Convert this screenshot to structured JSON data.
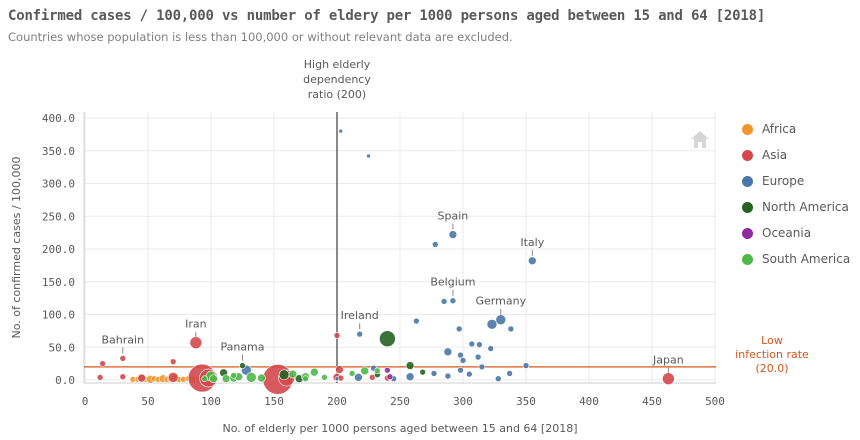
{
  "title": "Confirmed cases / 100,000 vs number of eldery per 1000 persons aged between 15 and 64 [2018]",
  "subtitle": "Countries whose population is less than 100,000 or without relevant data are excluded.",
  "chart_data": {
    "type": "scatter",
    "xlabel": "No. of elderly per 1000 persons aged between 15 and 64 [2018]",
    "ylabel": "No. of confirmed cases / 100,000",
    "xlim": [
      0,
      500
    ],
    "ylim": [
      0,
      400
    ],
    "x_ticks": [
      "0",
      "50",
      "100",
      "150",
      "200",
      "250",
      "300",
      "350",
      "400",
      "450",
      "500"
    ],
    "y_ticks": [
      "0.0",
      "50.0",
      "100.0",
      "150.0",
      "200.0",
      "250.0",
      "300.0",
      "350.0",
      "400.0"
    ],
    "grid": true,
    "legend_position": "right",
    "reference_lines": [
      {
        "orientation": "vertical",
        "value": 200,
        "label": "High elderly dependency ratio (200)",
        "color": "#595959"
      },
      {
        "orientation": "horizontal",
        "value": 20,
        "label": "Low infection rate (20.0)",
        "color": "#d0581e"
      }
    ],
    "series": [
      {
        "name": "Africa",
        "color": "#f0962e",
        "points": [
          [
            38,
            1,
            3
          ],
          [
            42,
            1,
            3
          ],
          [
            45,
            2,
            4
          ],
          [
            48,
            1,
            3
          ],
          [
            52,
            1,
            4
          ],
          [
            55,
            2,
            3
          ],
          [
            58,
            1,
            3
          ],
          [
            62,
            2,
            4
          ],
          [
            65,
            1,
            3
          ],
          [
            68,
            1,
            3
          ],
          [
            72,
            2,
            4
          ],
          [
            75,
            1,
            3
          ],
          [
            78,
            1,
            3
          ],
          [
            82,
            2,
            3
          ],
          [
            85,
            1,
            4
          ],
          [
            90,
            1,
            3
          ]
        ]
      },
      {
        "name": "Asia",
        "color": "#d3484d",
        "points": [
          [
            12,
            4,
            3
          ],
          [
            14,
            25,
            3
          ],
          [
            30,
            33,
            3
          ],
          [
            30,
            5,
            3
          ],
          [
            45,
            3,
            4
          ],
          [
            70,
            28,
            3
          ],
          [
            70,
            4,
            5
          ],
          [
            88,
            57,
            6
          ],
          [
            93,
            3,
            14
          ],
          [
            98,
            3,
            9
          ],
          [
            153,
            1,
            15
          ],
          [
            160,
            3,
            8
          ],
          [
            200,
            68,
            3
          ],
          [
            200,
            4,
            4
          ],
          [
            202,
            16,
            4
          ],
          [
            203,
            3,
            3
          ],
          [
            228,
            4,
            3
          ],
          [
            240,
            3,
            3
          ],
          [
            463,
            2,
            6
          ]
        ]
      },
      {
        "name": "Europe",
        "color": "#4a77a8",
        "points": [
          [
            203,
            380,
            2
          ],
          [
            225,
            342,
            2
          ],
          [
            278,
            207,
            3
          ],
          [
            292,
            222,
            4
          ],
          [
            355,
            182,
            4
          ],
          [
            277,
            10,
            3
          ],
          [
            285,
            120,
            3
          ],
          [
            292,
            121,
            3
          ],
          [
            297,
            78,
            3
          ],
          [
            263,
            90,
            3
          ],
          [
            315,
            20,
            3
          ],
          [
            323,
            85,
            5
          ],
          [
            330,
            92,
            5
          ],
          [
            338,
            78,
            3
          ],
          [
            322,
            48,
            3
          ],
          [
            307,
            55,
            3
          ],
          [
            313,
            54,
            3
          ],
          [
            288,
            43,
            4
          ],
          [
            298,
            38,
            3
          ],
          [
            300,
            30,
            3
          ],
          [
            312,
            35,
            3
          ],
          [
            328,
            2,
            3
          ],
          [
            337,
            10,
            3
          ],
          [
            350,
            22,
            3
          ],
          [
            128,
            15,
            5
          ],
          [
            218,
            70,
            3
          ],
          [
            217,
            4,
            4
          ],
          [
            229,
            18,
            3
          ],
          [
            258,
            5,
            4
          ],
          [
            288,
            6,
            3
          ],
          [
            298,
            15,
            3
          ],
          [
            305,
            9,
            3
          ],
          [
            245,
            2,
            3
          ],
          [
            200,
            2,
            2
          ]
        ]
      },
      {
        "name": "North America",
        "color": "#256325",
        "points": [
          [
            240,
            63,
            8
          ],
          [
            125,
            22,
            3
          ],
          [
            158,
            8,
            5
          ],
          [
            232,
            8,
            3
          ],
          [
            258,
            22,
            4
          ],
          [
            268,
            12,
            3
          ],
          [
            170,
            2,
            4
          ],
          [
            110,
            11,
            4
          ]
        ]
      },
      {
        "name": "Oceania",
        "color": "#8e2e9e",
        "points": [
          [
            240,
            15,
            3
          ],
          [
            242,
            5,
            3
          ]
        ]
      },
      {
        "name": "South America",
        "color": "#4fb848",
        "points": [
          [
            100,
            6,
            5
          ],
          [
            112,
            2,
            4
          ],
          [
            118,
            3,
            4
          ],
          [
            122,
            5,
            4
          ],
          [
            132,
            4,
            5
          ],
          [
            140,
            3,
            4
          ],
          [
            165,
            9,
            4
          ],
          [
            175,
            5,
            4
          ],
          [
            182,
            12,
            4
          ],
          [
            190,
            4,
            3
          ],
          [
            175,
            2,
            3
          ],
          [
            118,
            7,
            3
          ],
          [
            102,
            2,
            4
          ],
          [
            95,
            2,
            3
          ],
          [
            212,
            10,
            3
          ],
          [
            222,
            14,
            4
          ],
          [
            232,
            14,
            3
          ]
        ]
      }
    ],
    "annotations": [
      {
        "label": "Spain",
        "x": 292,
        "y": 222
      },
      {
        "label": "Italy",
        "x": 355,
        "y": 182
      },
      {
        "label": "Belgium",
        "x": 292,
        "y": 121
      },
      {
        "label": "Germany",
        "x": 330,
        "y": 92
      },
      {
        "label": "Ireland",
        "x": 218,
        "y": 70
      },
      {
        "label": "Iran",
        "x": 88,
        "y": 57
      },
      {
        "label": "Bahrain",
        "x": 30,
        "y": 33
      },
      {
        "label": "Panama",
        "x": 125,
        "y": 22
      },
      {
        "label": "Japan",
        "x": 463,
        "y": 2
      }
    ]
  }
}
